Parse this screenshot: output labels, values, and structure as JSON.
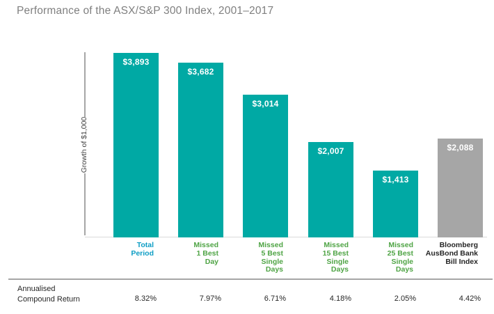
{
  "title": "Performance of the ASX/S&P 300 Index, 2001–2017",
  "colors": {
    "bar_teal": "#00A9A4",
    "bar_gray": "#A6A6A6",
    "category_blue": "#0D9DC4",
    "category_green": "#4FA445",
    "category_black": "#262626",
    "title_gray": "#7F7F7F"
  },
  "chart_data": {
    "type": "bar",
    "title": "Performance of the ASX/S&P 300 Index, 2001–2017",
    "ylabel": "Growth of $1,000",
    "ylim": [
      0,
      4000
    ],
    "grid": false,
    "legend": false,
    "categories": [
      "Total Period",
      "Missed 1 Best Day",
      "Missed 5 Best Single Days",
      "Missed 15 Best Single Days",
      "Missed 25 Best Single Days",
      "Bloomberg AusBond Bank Bill Index"
    ],
    "values": [
      3893,
      3682,
      3014,
      2007,
      1413,
      2088
    ],
    "bars": [
      {
        "category": "Total\nPeriod",
        "category_color": "#0D9DC4",
        "value": 3893,
        "value_label": "$3,893",
        "bar_color": "#00A9A4",
        "annualised_compound_return": "8.32%"
      },
      {
        "category": "Missed\n1 Best\nDay",
        "category_color": "#4FA445",
        "value": 3682,
        "value_label": "$3,682",
        "bar_color": "#00A9A4",
        "annualised_compound_return": "7.97%"
      },
      {
        "category": "Missed\n5 Best\nSingle\nDays",
        "category_color": "#4FA445",
        "value": 3014,
        "value_label": "$3,014",
        "bar_color": "#00A9A4",
        "annualised_compound_return": "6.71%"
      },
      {
        "category": "Missed\n15 Best\nSingle\nDays",
        "category_color": "#4FA445",
        "value": 2007,
        "value_label": "$2,007",
        "bar_color": "#00A9A4",
        "annualised_compound_return": "4.18%"
      },
      {
        "category": "Missed\n25 Best\nSingle\nDays",
        "category_color": "#4FA445",
        "value": 1413,
        "value_label": "$1,413",
        "bar_color": "#00A9A4",
        "annualised_compound_return": "2.05%"
      },
      {
        "category": "Bloomberg\nAusBond Bank\nBill Index",
        "category_color": "#262626",
        "value": 2088,
        "value_label": "$2,088",
        "bar_color": "#A6A6A6",
        "annualised_compound_return": "4.42%"
      }
    ],
    "footer_label": "Annualised\nCompound Return"
  }
}
